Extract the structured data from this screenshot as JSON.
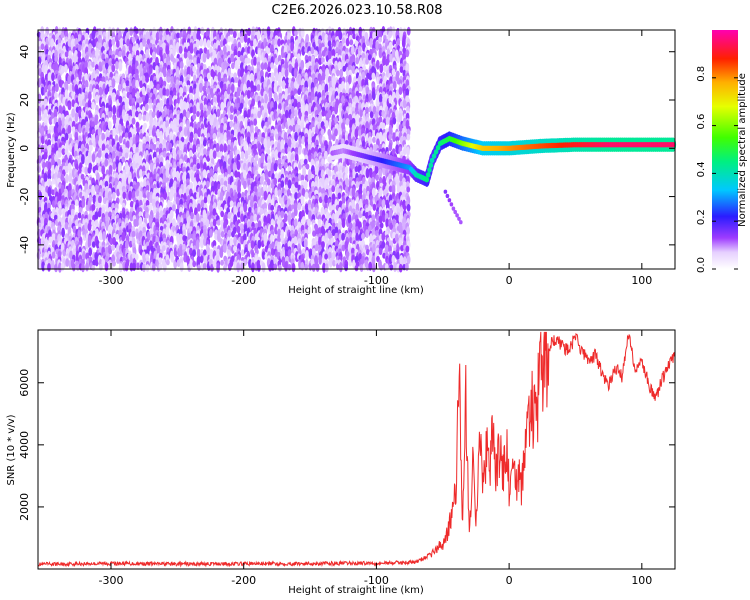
{
  "title": "C2E6.2026.023.10.58.R08",
  "colors": {
    "snr_line": "#ee2a2a",
    "frame": "#000000",
    "background": "#ffffff"
  },
  "chart_data": [
    {
      "type": "heatmap",
      "xlabel": "Height of straight line (km)",
      "ylabel": "Frequency (Hz)",
      "xlim": [
        -355,
        125
      ],
      "ylim": [
        -50,
        49
      ],
      "xticks": [
        -300,
        -200,
        -100,
        0,
        100
      ],
      "yticks": [
        -40,
        -20,
        0,
        20,
        40
      ],
      "colorbar": {
        "label": "Normalized spectral amplitude",
        "range": [
          0,
          1
        ],
        "ticks": [
          0.0,
          0.2,
          0.4,
          0.6,
          0.8
        ],
        "tick_labels": [
          "0.0",
          "0.2",
          "0.4",
          "0.6",
          "0.8"
        ],
        "colormap": "rainbow (white-violet-blue-cyan-green-yellow-red-magenta)"
      },
      "noise_region": {
        "x": [
          -355,
          -75
        ],
        "amplitude": 0.1
      },
      "signal_track": [
        {
          "x": -133,
          "y": -2,
          "amplitude": 0.12
        },
        {
          "x": -125,
          "y": -1,
          "amplitude": 0.1
        },
        {
          "x": -75,
          "y": -8,
          "amplitude": 0.3
        },
        {
          "x": -70,
          "y": -11,
          "amplitude": 0.4
        },
        {
          "x": -62,
          "y": -13,
          "amplitude": 0.45
        },
        {
          "x": -58,
          "y": -5,
          "amplitude": 0.4
        },
        {
          "x": -52,
          "y": 2,
          "amplitude": 0.45
        },
        {
          "x": -45,
          "y": 4,
          "amplitude": 0.5
        },
        {
          "x": -35,
          "y": 2,
          "amplitude": 0.6
        },
        {
          "x": -20,
          "y": 0,
          "amplitude": 0.75
        },
        {
          "x": 0,
          "y": 0,
          "amplitude": 0.8
        },
        {
          "x": 25,
          "y": 1,
          "amplitude": 0.85
        },
        {
          "x": 50,
          "y": 1.5,
          "amplitude": 0.9
        },
        {
          "x": 75,
          "y": 1.5,
          "amplitude": 0.95
        },
        {
          "x": 100,
          "y": 1.5,
          "amplitude": 0.95
        },
        {
          "x": 125,
          "y": 1.5,
          "amplitude": 0.95
        }
      ],
      "secondary_branch": [
        {
          "x": -48,
          "y": -18,
          "amplitude": 0.15
        },
        {
          "x": -42,
          "y": -25,
          "amplitude": 0.12
        },
        {
          "x": -35,
          "y": -32,
          "amplitude": 0.12
        }
      ]
    },
    {
      "type": "line",
      "xlabel": "Height of straight line (km)",
      "ylabel": "SNR (10 * v/v)",
      "xlim": [
        -355,
        125
      ],
      "ylim": [
        0,
        7700
      ],
      "xticks": [
        -300,
        -200,
        -100,
        0,
        100
      ],
      "yticks": [
        2000,
        4000,
        6000
      ],
      "series": [
        {
          "name": "SNR",
          "x": [
            -355,
            -300,
            -250,
            -200,
            -150,
            -100,
            -70,
            -60,
            -50,
            -45,
            -40,
            -38,
            -35,
            -33,
            -30,
            -27,
            -25,
            -22,
            -20,
            -17,
            -15,
            -12,
            -10,
            -7,
            -5,
            -2,
            0,
            5,
            10,
            15,
            20,
            25,
            30,
            35,
            40,
            45,
            50,
            55,
            60,
            65,
            70,
            75,
            80,
            85,
            90,
            95,
            100,
            105,
            110,
            115,
            120,
            125
          ],
          "y": [
            150,
            180,
            160,
            170,
            175,
            190,
            220,
            450,
            800,
            1400,
            2400,
            6600,
            1500,
            5800,
            1200,
            3500,
            1800,
            4200,
            2500,
            3900,
            3000,
            4300,
            3200,
            3800,
            2900,
            4000,
            2600,
            3000,
            2700,
            5300,
            4800,
            6600,
            7200,
            7400,
            7200,
            7000,
            7500,
            7000,
            6700,
            6900,
            6300,
            5900,
            6500,
            6200,
            7600,
            6400,
            6700,
            6000,
            5400,
            6100,
            6500,
            6900
          ]
        }
      ]
    }
  ]
}
